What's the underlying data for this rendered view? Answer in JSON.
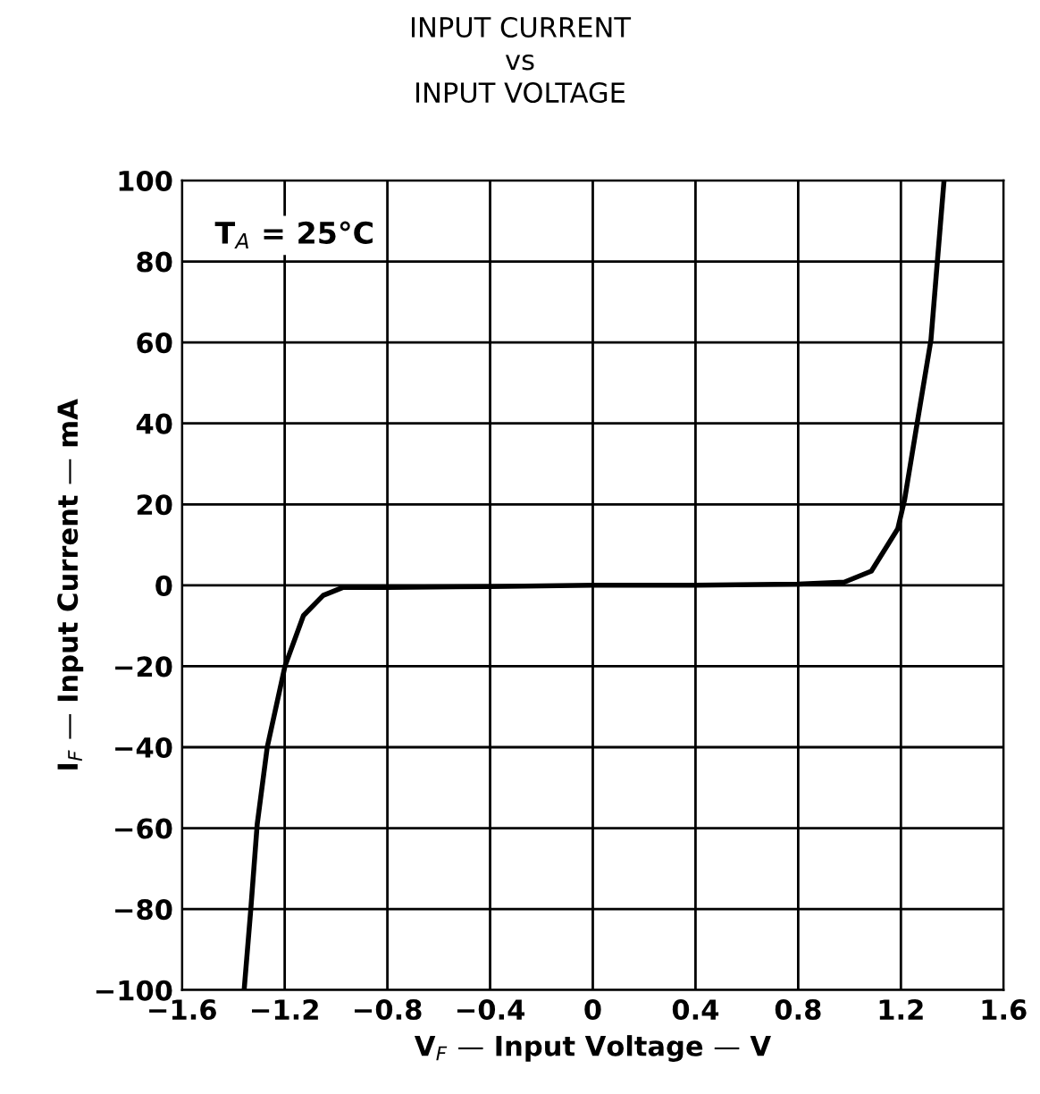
{
  "chart_data": {
    "type": "line",
    "title": "INPUT CURRENT\nvs\nINPUT VOLTAGE",
    "xlabel": "V$_{F}$ — Input Voltage — V",
    "ylabel": "I$_{F}$ — Input Current — mA",
    "annotations": [
      "T$_{A}$ = 25°C"
    ],
    "series": [
      {
        "color": "#000000",
        "x": [
          -1.358,
          -1.332,
          -1.307,
          -1.268,
          -1.199,
          -1.127,
          -1.05,
          -0.972,
          -0.8,
          -0.4,
          0,
          0.4,
          0.8,
          0.98,
          1.085,
          1.188,
          1.214,
          1.265,
          1.317,
          1.342,
          1.368
        ],
        "values": [
          -100,
          -80,
          -59,
          -40,
          -20,
          -7.5,
          -2.5,
          -0.5,
          -0.5,
          -0.3,
          0,
          0,
          0.3,
          0.8,
          3.5,
          14,
          21,
          40.7,
          60.6,
          80,
          100
        ]
      }
    ],
    "xlim": [
      -1.6,
      1.6
    ],
    "ylim": [
      -100,
      100
    ],
    "xticks": [
      {
        "value": -1.6,
        "label": "−1.6"
      },
      {
        "value": -1.2,
        "label": "−1.2"
      },
      {
        "value": -0.8,
        "label": "−0.8"
      },
      {
        "value": -0.4,
        "label": "−0.4"
      },
      0,
      0.4,
      0.8,
      1.2,
      1.6
    ],
    "yticks": [
      {
        "value": -100,
        "label": "−100"
      },
      {
        "value": -80,
        "label": "−80"
      },
      {
        "value": -60,
        "label": "−60"
      },
      {
        "value": -40,
        "label": "−40"
      },
      {
        "value": -20,
        "label": "−20"
      },
      0,
      20,
      40,
      60,
      80,
      100
    ],
    "grid": true,
    "line_style": "solid"
  }
}
